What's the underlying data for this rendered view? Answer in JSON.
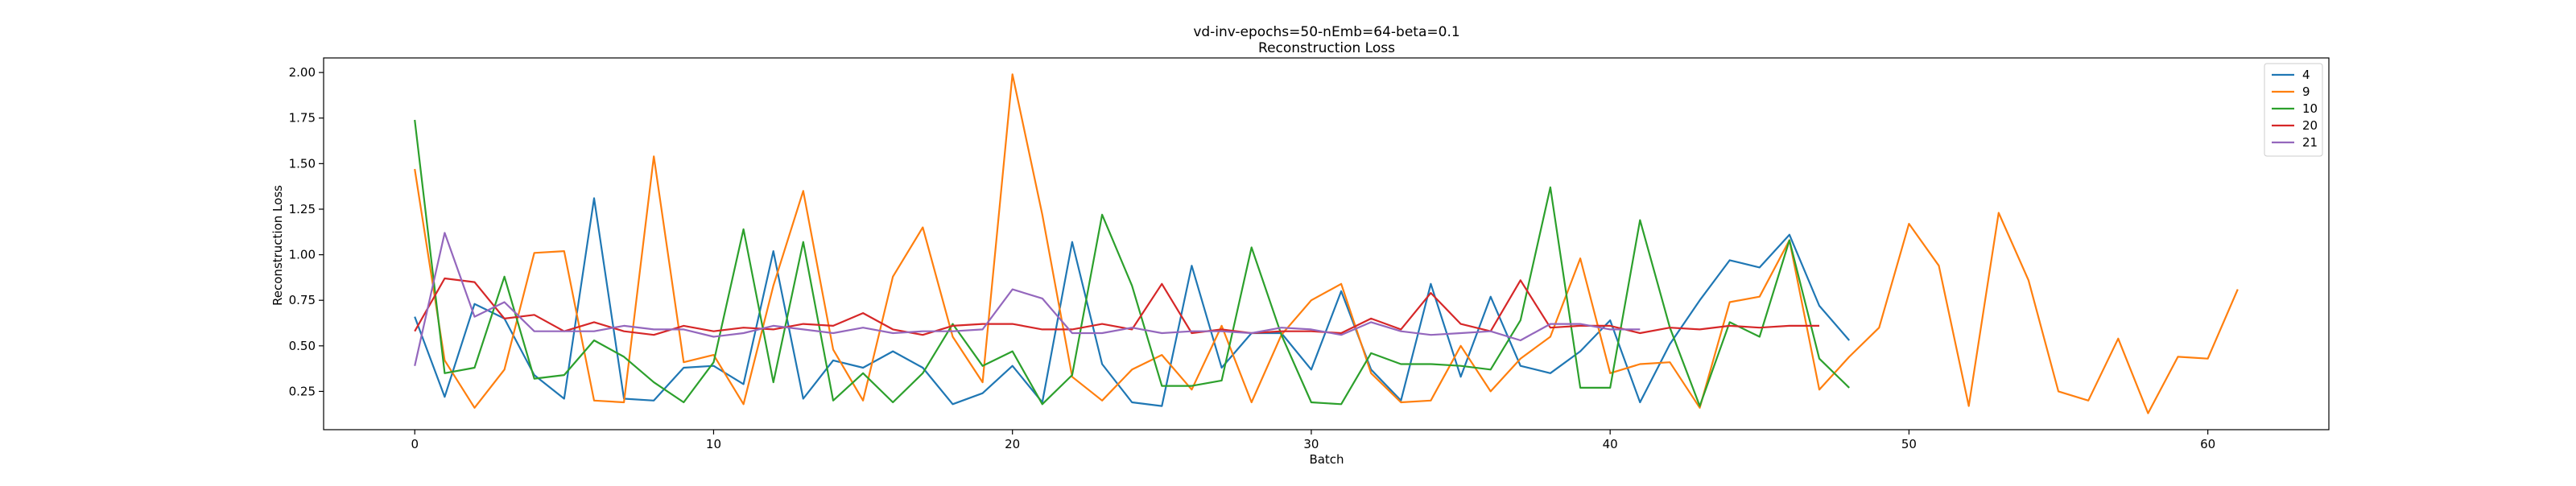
{
  "chart_data": {
    "type": "line",
    "title": "vd-inv-epochs=50-nEmb=64-beta=0.1",
    "subtitle": "Reconstruction Loss",
    "xlabel": "Batch",
    "ylabel": "Reconstruction Loss",
    "xlim": [
      -3.05,
      64.05
    ],
    "ylim": [
      0.04,
      2.08
    ],
    "xticks": [
      0,
      10,
      20,
      30,
      40,
      50,
      60
    ],
    "yticks": [
      0.25,
      0.5,
      0.75,
      1.0,
      1.25,
      1.5,
      1.75,
      2.0
    ],
    "ytick_labels": [
      "0.25",
      "0.50",
      "0.75",
      "1.00",
      "1.25",
      "1.50",
      "1.75",
      "2.00"
    ],
    "grid": false,
    "legend_position": "top-right",
    "series": [
      {
        "name": "4",
        "color": "#1f77b4",
        "values": [
          0.66,
          0.22,
          0.73,
          0.65,
          0.34,
          0.21,
          1.31,
          0.21,
          0.2,
          0.38,
          0.39,
          0.29,
          1.02,
          0.21,
          0.42,
          0.38,
          0.47,
          0.38,
          0.18,
          0.24,
          0.39,
          0.19,
          1.07,
          0.4,
          0.19,
          0.17,
          0.94,
          0.38,
          0.57,
          0.57,
          0.37,
          0.8,
          0.37,
          0.2,
          0.84,
          0.33,
          0.77,
          0.39,
          0.35,
          0.47,
          0.64,
          0.19,
          0.51,
          0.75,
          0.97,
          0.93,
          1.11,
          0.72,
          0.53
        ]
      },
      {
        "name": "9",
        "color": "#ff7f0e",
        "values": [
          1.47,
          0.42,
          0.16,
          0.37,
          1.01,
          1.02,
          0.2,
          0.19,
          1.54,
          0.41,
          0.45,
          0.18,
          0.83,
          1.35,
          0.48,
          0.2,
          0.88,
          1.15,
          0.55,
          0.3,
          1.99,
          1.22,
          0.33,
          0.2,
          0.37,
          0.45,
          0.26,
          0.61,
          0.19,
          0.56,
          0.75,
          0.84,
          0.35,
          0.19,
          0.2,
          0.5,
          0.25,
          0.43,
          0.55,
          0.98,
          0.35,
          0.4,
          0.41,
          0.16,
          0.74,
          0.77,
          1.08,
          0.26,
          0.44,
          0.6,
          1.17,
          0.94,
          0.17,
          1.23,
          0.86,
          0.25,
          0.2,
          0.54,
          0.13,
          0.44,
          0.43,
          0.81
        ]
      },
      {
        "name": "10",
        "color": "#2ca02c",
        "values": [
          1.74,
          0.35,
          0.38,
          0.88,
          0.32,
          0.34,
          0.53,
          0.44,
          0.3,
          0.19,
          0.41,
          1.14,
          0.3,
          1.07,
          0.2,
          0.35,
          0.19,
          0.35,
          0.62,
          0.39,
          0.47,
          0.18,
          0.34,
          1.22,
          0.83,
          0.28,
          0.28,
          0.31,
          1.04,
          0.56,
          0.19,
          0.18,
          0.46,
          0.4,
          0.4,
          0.39,
          0.37,
          0.64,
          1.37,
          0.27,
          0.27,
          1.19,
          0.6,
          0.17,
          0.63,
          0.55,
          1.08,
          0.43,
          0.27
        ]
      },
      {
        "name": "20",
        "color": "#d62728",
        "values": [
          0.58,
          0.87,
          0.85,
          0.65,
          0.67,
          0.58,
          0.63,
          0.58,
          0.56,
          0.61,
          0.58,
          0.6,
          0.59,
          0.62,
          0.61,
          0.68,
          0.59,
          0.56,
          0.61,
          0.62,
          0.62,
          0.59,
          0.59,
          0.62,
          0.59,
          0.84,
          0.57,
          0.59,
          0.57,
          0.58,
          0.58,
          0.57,
          0.65,
          0.59,
          0.79,
          0.62,
          0.58,
          0.86,
          0.6,
          0.61,
          0.61,
          0.57,
          0.6,
          0.59,
          0.61,
          0.6,
          0.61,
          0.61
        ]
      },
      {
        "name": "21",
        "color": "#9467bd",
        "values": [
          0.39,
          1.12,
          0.66,
          0.74,
          0.58,
          0.58,
          0.58,
          0.61,
          0.59,
          0.59,
          0.55,
          0.57,
          0.61,
          0.59,
          0.57,
          0.6,
          0.57,
          0.58,
          0.58,
          0.59,
          0.81,
          0.76,
          0.57,
          0.57,
          0.6,
          0.57,
          0.58,
          0.58,
          0.57,
          0.6,
          0.59,
          0.56,
          0.63,
          0.58,
          0.56,
          0.57,
          0.58,
          0.53,
          0.62,
          0.62,
          0.59,
          0.59
        ]
      }
    ]
  }
}
